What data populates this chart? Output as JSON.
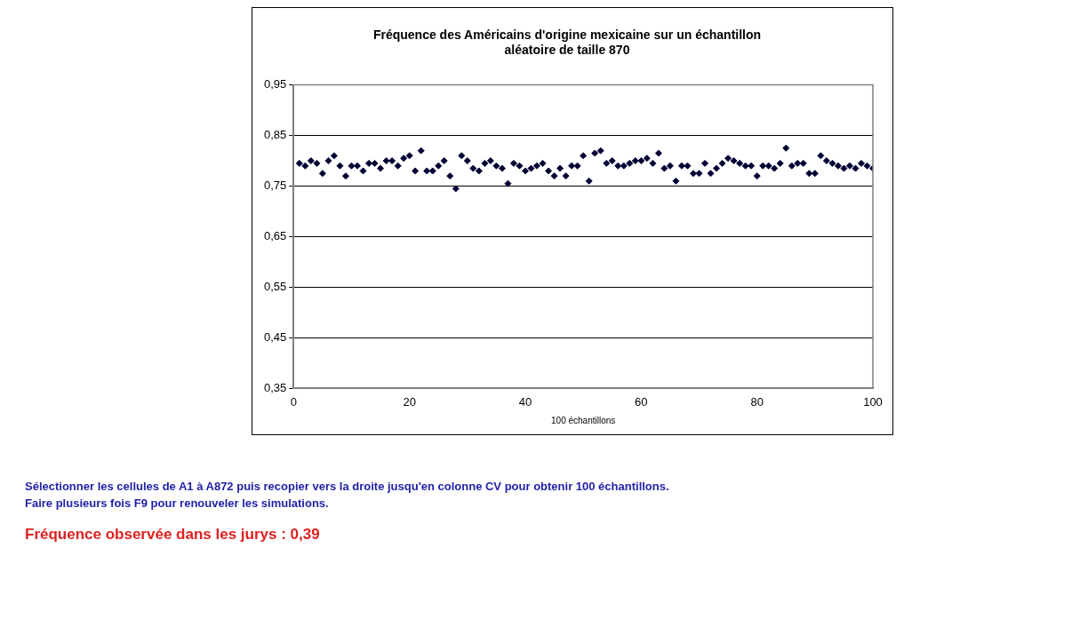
{
  "chart_data": {
    "type": "scatter",
    "title": "Fréquence des Américains d'origine mexicaine sur un échantillon aléatoire de taille 870",
    "xlabel": "100 échantillons",
    "x": [
      1,
      2,
      3,
      4,
      5,
      6,
      7,
      8,
      9,
      10,
      11,
      12,
      13,
      14,
      15,
      16,
      17,
      18,
      19,
      20,
      21,
      22,
      23,
      24,
      25,
      26,
      27,
      28,
      29,
      30,
      31,
      32,
      33,
      34,
      35,
      36,
      37,
      38,
      39,
      40,
      41,
      42,
      43,
      44,
      45,
      46,
      47,
      48,
      49,
      50,
      51,
      52,
      53,
      54,
      55,
      56,
      57,
      58,
      59,
      60,
      61,
      62,
      63,
      64,
      65,
      66,
      67,
      68,
      69,
      70,
      71,
      72,
      73,
      74,
      75,
      76,
      77,
      78,
      79,
      80,
      81,
      82,
      83,
      84,
      85,
      86,
      87,
      88,
      89,
      90,
      91,
      92,
      93,
      94,
      95,
      96,
      97,
      98,
      99,
      100
    ],
    "series": [
      {
        "color": "#000033",
        "values": [
          0.795,
          0.79,
          0.8,
          0.795,
          0.775,
          0.8,
          0.81,
          0.79,
          0.77,
          0.79,
          0.79,
          0.78,
          0.795,
          0.795,
          0.785,
          0.8,
          0.8,
          0.79,
          0.805,
          0.81,
          0.78,
          0.82,
          0.78,
          0.78,
          0.79,
          0.8,
          0.77,
          0.745,
          0.81,
          0.8,
          0.785,
          0.78,
          0.795,
          0.8,
          0.79,
          0.785,
          0.755,
          0.795,
          0.79,
          0.78,
          0.785,
          0.79,
          0.795,
          0.78,
          0.77,
          0.785,
          0.77,
          0.79,
          0.79,
          0.81,
          0.76,
          0.815,
          0.82,
          0.795,
          0.8,
          0.79,
          0.79,
          0.795,
          0.8,
          0.8,
          0.805,
          0.795,
          0.815,
          0.785,
          0.79,
          0.76,
          0.79,
          0.79,
          0.775,
          0.775,
          0.795,
          0.775,
          0.785,
          0.795,
          0.805,
          0.8,
          0.795,
          0.79,
          0.79,
          0.77,
          0.79,
          0.79,
          0.785,
          0.795,
          0.825,
          0.79,
          0.795,
          0.795,
          0.775,
          0.775,
          0.81,
          0.8,
          0.795,
          0.79,
          0.785,
          0.79,
          0.785,
          0.795,
          0.79,
          0.785
        ]
      }
    ],
    "xlim": [
      0,
      100
    ],
    "xticks": [
      0,
      20,
      40,
      60,
      80,
      100
    ],
    "ylim": [
      0.35,
      0.95
    ],
    "yticks": [
      {
        "value": 0.35,
        "label": "0,35"
      },
      {
        "value": 0.45,
        "label": "0,45"
      },
      {
        "value": 0.55,
        "label": "0,55"
      },
      {
        "value": 0.65,
        "label": "0,65"
      },
      {
        "value": 0.75,
        "label": "0,75"
      },
      {
        "value": 0.85,
        "label": "0,85"
      },
      {
        "value": 0.95,
        "label": "0,95"
      }
    ],
    "grid": "y",
    "marker": "diamond",
    "legend": false,
    "annotations": [
      "Sélectionner les cellules de A1 à A872 puis recopier vers la droite jusqu'en colonne CV pour obtenir 100 échantillons.",
      "Faire plusieurs fois F9 pour renouveler les simulations.",
      "Fréquence observée dans les jurys :  0,39"
    ]
  }
}
